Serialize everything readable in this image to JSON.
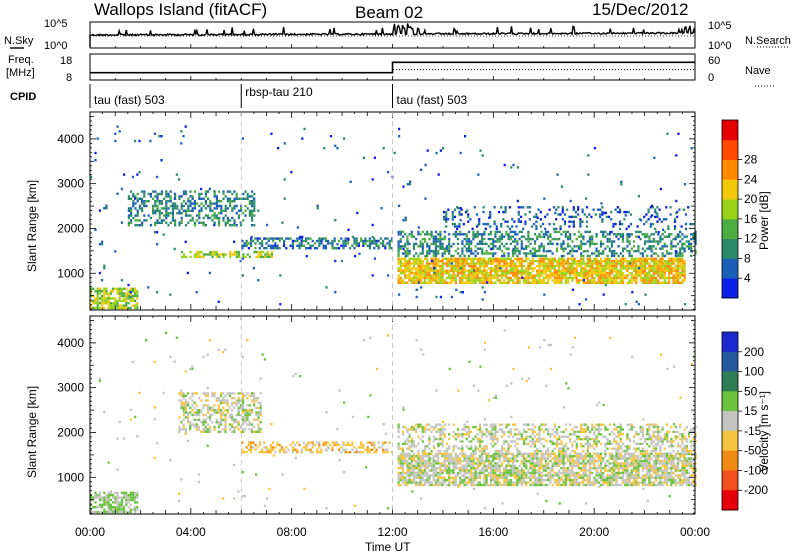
{
  "header": {
    "station": "Wallops Island (fitACF)",
    "beam": "Beam 02",
    "date": "15/Dec/2012"
  },
  "panels": {
    "nsky_label": "N.Sky",
    "freq_label_1": "Freq.",
    "freq_label_2": "[MHz]",
    "cpid_label": "CPID",
    "nsearch_label": "N.Search",
    "nave_label": "Nave",
    "sky_ticks": [
      "10^5",
      "10^0"
    ],
    "search_ticks": [
      "10^5",
      "10^0"
    ],
    "freq_ticks": [
      "18",
      "8"
    ],
    "nave_ticks": [
      "60",
      "0"
    ],
    "cpid_segments": [
      {
        "label": "tau (fast) 503",
        "start_hour": 0
      },
      {
        "label": "rbsp-tau 210",
        "start_hour": 6
      },
      {
        "label": "tau (fast) 503",
        "start_hour": 12
      }
    ]
  },
  "axes": {
    "x_ticks": [
      "00:00",
      "04:00",
      "08:00",
      "12:00",
      "16:00",
      "20:00",
      "00:00"
    ],
    "xlabel": "Time UT",
    "ylabel": "Slant Range [km]",
    "y_ticks": [
      "1000",
      "2000",
      "3000",
      "4000"
    ]
  },
  "colorbars": {
    "power": {
      "label": "Power [dB]",
      "ticks": [
        "4",
        "8",
        "12",
        "16",
        "20",
        "24",
        "28"
      ],
      "colors": [
        "#0a1ee6",
        "#1c5fb8",
        "#2a8a6a",
        "#4cad42",
        "#9bd31c",
        "#f2c80a",
        "#ff8a00",
        "#ff4a00",
        "#e60000"
      ]
    },
    "velocity": {
      "label": "Velocity [m s⁻¹]",
      "ticks": [
        "200",
        "100",
        "50",
        "15",
        "-15",
        "-50",
        "-100",
        "-200"
      ],
      "colors": [
        "#1a2ad0",
        "#23589b",
        "#2e7d55",
        "#6bc23c",
        "#c4c4c0",
        "#f5c542",
        "#f08a12",
        "#f0501e",
        "#e6000a"
      ]
    }
  },
  "chart_data": {
    "type": "heatmap",
    "x_range_hours": [
      0,
      24
    ],
    "y_range_km": [
      180,
      4600
    ],
    "frequency_mhz": [
      {
        "start_hour": 0,
        "end_hour": 12,
        "value": 10.8
      },
      {
        "start_hour": 12,
        "end_hour": 24,
        "value": 14.8
      }
    ],
    "nave": [
      {
        "start_hour": 0,
        "end_hour": 12,
        "value": 17
      },
      {
        "start_hour": 12,
        "end_hour": 24,
        "value": 24
      }
    ],
    "power_regions": [
      {
        "t0": 0.0,
        "t1": 1.9,
        "r0": 200,
        "r1": 680,
        "mean_db": 18,
        "density": 0.75
      },
      {
        "t0": 1.5,
        "t1": 6.5,
        "r0": 2050,
        "r1": 2850,
        "mean_db": 9,
        "density": 0.45
      },
      {
        "t0": 3.6,
        "t1": 7.2,
        "r0": 1350,
        "r1": 1500,
        "mean_db": 18,
        "density": 0.55
      },
      {
        "t0": 6.0,
        "t1": 12.0,
        "r0": 1550,
        "r1": 1800,
        "mean_db": 8,
        "density": 0.55
      },
      {
        "t0": 12.2,
        "t1": 23.6,
        "r0": 800,
        "r1": 1350,
        "mean_db": 22,
        "density": 0.85
      },
      {
        "t0": 12.2,
        "t1": 24.0,
        "r0": 1400,
        "r1": 1950,
        "mean_db": 10,
        "density": 0.45
      },
      {
        "t0": 14.0,
        "t1": 24.0,
        "r0": 2000,
        "r1": 2500,
        "mean_db": 6,
        "density": 0.2
      },
      {
        "t0": 0.0,
        "t1": 24.0,
        "r0": 300,
        "r1": 4300,
        "mean_db": 6,
        "density": 0.012
      }
    ],
    "velocity_regions": [
      {
        "t0": 0.0,
        "t1": 1.9,
        "r0": 200,
        "r1": 680,
        "mean_ms": 20,
        "density": 0.7
      },
      {
        "t0": 3.5,
        "t1": 6.8,
        "r0": 2000,
        "r1": 2900,
        "mean_ms": 0,
        "density": 0.5
      },
      {
        "t0": 6.0,
        "t1": 12.0,
        "r0": 1550,
        "r1": 1800,
        "mean_ms": -30,
        "density": 0.5
      },
      {
        "t0": 12.2,
        "t1": 24.0,
        "r0": 850,
        "r1": 1550,
        "mean_ms": 0,
        "density": 0.8
      },
      {
        "t0": 12.2,
        "t1": 24.0,
        "r0": 1600,
        "r1": 2200,
        "mean_ms": 0,
        "density": 0.4
      },
      {
        "t0": 0.0,
        "t1": 24.0,
        "r0": 300,
        "r1": 4300,
        "mean_ms": 0,
        "density": 0.01
      }
    ]
  }
}
